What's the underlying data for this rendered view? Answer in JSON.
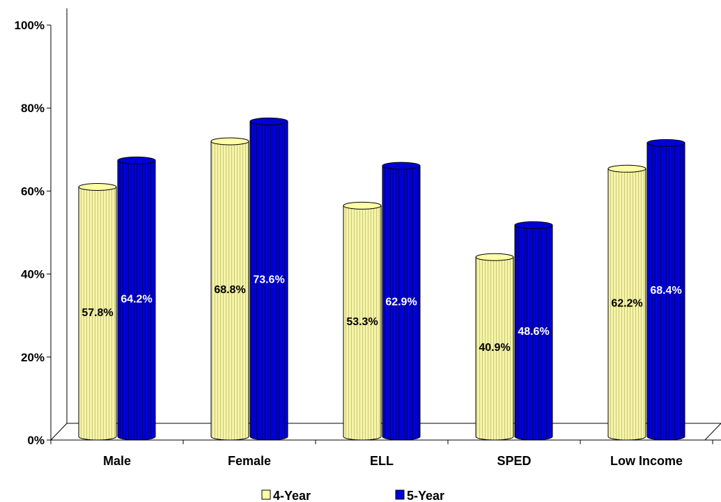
{
  "chart_data": {
    "type": "bar",
    "categories": [
      "Male",
      "Female",
      "ELL",
      "SPED",
      "Low Income"
    ],
    "series": [
      {
        "name": "4-Year",
        "values": [
          57.8,
          68.8,
          53.3,
          40.9,
          62.2
        ],
        "labels": [
          "57.8%",
          "68.8%",
          "53.3%",
          "40.9%",
          "62.2%"
        ],
        "color": "#ffffa8",
        "label_color": "#000000"
      },
      {
        "name": "5-Year",
        "values": [
          64.2,
          73.6,
          62.9,
          48.6,
          68.4
        ],
        "labels": [
          "64.2%",
          "73.6%",
          "62.9%",
          "48.6%",
          "68.4%"
        ],
        "color": "#0000d8",
        "label_color": "#ffffff"
      }
    ],
    "y_ticks": [
      {
        "value": 0,
        "label": "0%"
      },
      {
        "value": 20,
        "label": "20%"
      },
      {
        "value": 40,
        "label": "40%"
      },
      {
        "value": 60,
        "label": "60%"
      },
      {
        "value": 80,
        "label": "80%"
      },
      {
        "value": 100,
        "label": "100%"
      }
    ],
    "ylim": [
      0,
      100
    ],
    "bar_shape": "cylinder",
    "legend_position": "bottom-center",
    "grid": false,
    "title": "",
    "xlabel": "",
    "ylabel": ""
  }
}
